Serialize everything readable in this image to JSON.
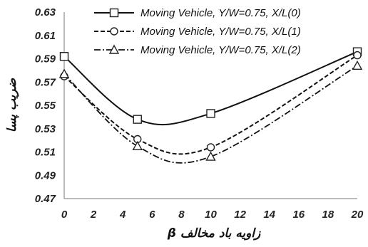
{
  "chart_data": {
    "type": "line",
    "title": "",
    "xlabel": "زاویه باد مخالف β",
    "ylabel": "ضریب پسا",
    "xlim": [
      0,
      20
    ],
    "ylim": [
      0.47,
      0.63
    ],
    "x_ticks": [
      "0",
      "2",
      "4",
      "6",
      "8",
      "10",
      "12",
      "14",
      "16",
      "18",
      "20"
    ],
    "y_ticks": [
      "0.47",
      "0.49",
      "0.51",
      "0.53",
      "0.55",
      "0.57",
      "0.59",
      "0.61",
      "0.63"
    ],
    "grid": false,
    "legend_position": "top-right",
    "series": [
      {
        "name": "Moving Vehicle, Y/W=0.75, X/L(0)",
        "marker": "square",
        "line_style": "solid",
        "x": [
          0,
          5,
          10,
          20
        ],
        "y": [
          0.592,
          0.538,
          0.543,
          0.596
        ]
      },
      {
        "name": "Moving Vehicle, Y/W=0.75, X/L(1)",
        "marker": "circle",
        "line_style": "dashed",
        "x": [
          0,
          5,
          10,
          20
        ],
        "y": [
          0.575,
          0.521,
          0.514,
          0.593
        ]
      },
      {
        "name": "Moving Vehicle, Y/W=0.75, X/L(2)",
        "marker": "triangle",
        "line_style": "dash-dot",
        "x": [
          0,
          5,
          10,
          20
        ],
        "y": [
          0.577,
          0.515,
          0.506,
          0.584
        ]
      }
    ]
  }
}
